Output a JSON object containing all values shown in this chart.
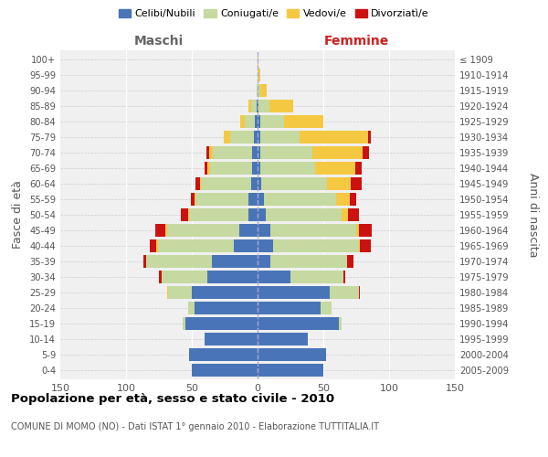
{
  "age_groups": [
    "0-4",
    "5-9",
    "10-14",
    "15-19",
    "20-24",
    "25-29",
    "30-34",
    "35-39",
    "40-44",
    "45-49",
    "50-54",
    "55-59",
    "60-64",
    "65-69",
    "70-74",
    "75-79",
    "80-84",
    "85-89",
    "90-94",
    "95-99",
    "100+"
  ],
  "birth_years": [
    "2005-2009",
    "2000-2004",
    "1995-1999",
    "1990-1994",
    "1985-1989",
    "1980-1984",
    "1975-1979",
    "1970-1974",
    "1965-1969",
    "1960-1964",
    "1955-1959",
    "1950-1954",
    "1945-1949",
    "1940-1944",
    "1935-1939",
    "1930-1934",
    "1925-1929",
    "1920-1924",
    "1915-1919",
    "1910-1914",
    "≤ 1909"
  ],
  "colors": {
    "celibe": "#4975b8",
    "coniugato": "#c5d9a0",
    "vedovo": "#f5c842",
    "divorziato": "#cc1111"
  },
  "maschi": {
    "celibe": [
      50,
      52,
      40,
      55,
      48,
      50,
      38,
      35,
      18,
      14,
      7,
      7,
      5,
      4,
      4,
      3,
      2,
      1,
      0,
      0,
      0
    ],
    "coniugato": [
      0,
      0,
      0,
      2,
      5,
      18,
      35,
      50,
      58,
      55,
      45,
      40,
      38,
      32,
      30,
      18,
      8,
      4,
      1,
      0,
      0
    ],
    "vedovo": [
      0,
      0,
      0,
      0,
      0,
      1,
      0,
      0,
      1,
      1,
      1,
      1,
      1,
      2,
      3,
      5,
      3,
      2,
      0,
      0,
      0
    ],
    "divorziato": [
      0,
      0,
      0,
      0,
      0,
      0,
      2,
      2,
      5,
      8,
      5,
      3,
      3,
      2,
      2,
      0,
      0,
      0,
      0,
      0,
      0
    ]
  },
  "femmine": {
    "celibe": [
      50,
      52,
      38,
      62,
      48,
      55,
      25,
      10,
      12,
      10,
      6,
      5,
      3,
      2,
      2,
      2,
      2,
      1,
      0,
      0,
      0
    ],
    "coniugato": [
      0,
      0,
      0,
      2,
      8,
      22,
      40,
      58,
      65,
      65,
      58,
      55,
      50,
      42,
      40,
      30,
      18,
      8,
      2,
      1,
      0
    ],
    "vedovo": [
      0,
      0,
      0,
      0,
      0,
      0,
      0,
      0,
      1,
      2,
      5,
      10,
      18,
      30,
      38,
      52,
      30,
      18,
      5,
      1,
      1
    ],
    "divorziato": [
      0,
      0,
      0,
      0,
      0,
      1,
      2,
      5,
      8,
      10,
      8,
      5,
      8,
      5,
      5,
      2,
      0,
      0,
      0,
      0,
      0
    ]
  },
  "title": "Popolazione per età, sesso e stato civile - 2010",
  "subtitle": "COMUNE DI MOMO (NO) - Dati ISTAT 1° gennaio 2010 - Elaborazione TUTTITALIA.IT",
  "ylabel_left": "Fasce di età",
  "ylabel_right": "Anni di nascita",
  "xlabel_left": "Maschi",
  "xlabel_right": "Femmine",
  "xlim": 150,
  "legend_labels": [
    "Celibi/Nubili",
    "Coniugati/e",
    "Vedovi/e",
    "Divorziatì/e"
  ],
  "bg_color": "#f0f0f0",
  "grid_color": "#ffffff",
  "center_line_color": "#aaaacc"
}
